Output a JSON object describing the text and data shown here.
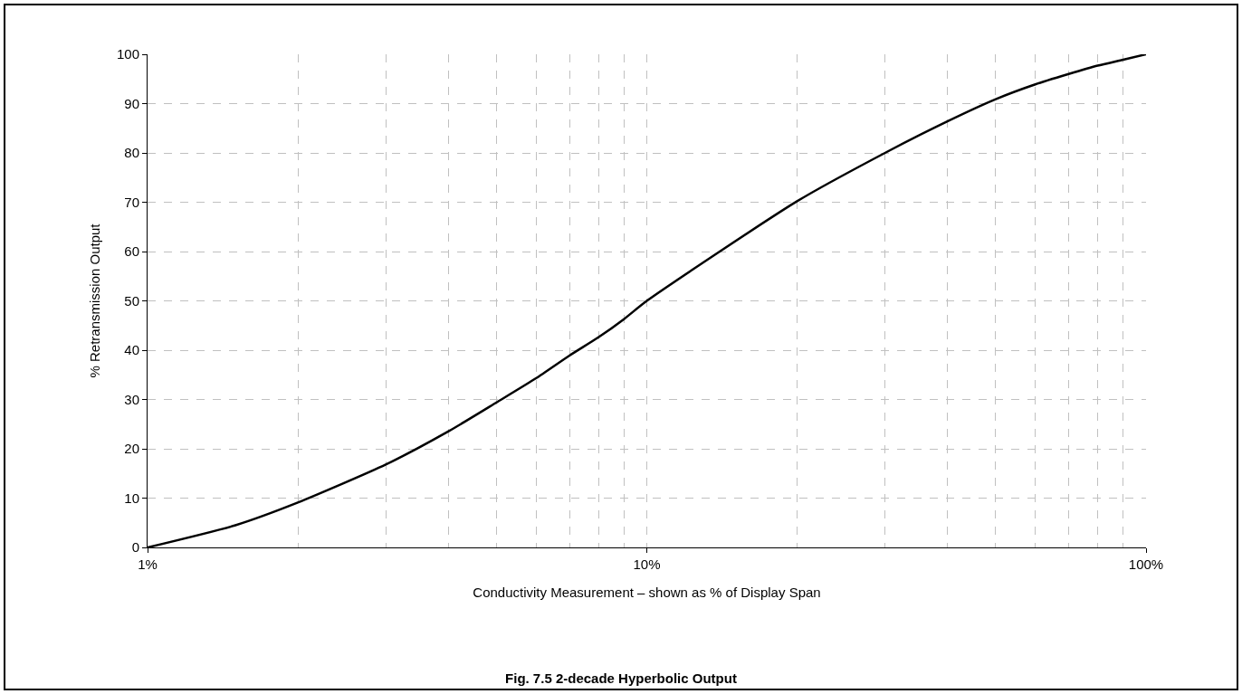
{
  "chart_data": {
    "type": "line",
    "title": "Fig. 7.5 2-decade Hyperbolic Output",
    "xlabel": "Conductivity Measurement – shown as % of Display Span",
    "ylabel": "% Retransmission Output",
    "x": [
      1,
      1.5,
      2,
      3,
      4,
      5,
      6,
      7,
      8,
      9,
      10,
      20,
      30,
      40,
      50,
      60,
      70,
      80,
      90,
      100
    ],
    "series": [
      {
        "color": "#000000",
        "values": [
          0,
          4.5,
          9.1,
          16.8,
          23.5,
          29.4,
          34.3,
          38.9,
          42.6,
          46.3,
          50,
          70.2,
          80,
          86.4,
          90.9,
          93.9,
          96,
          97.7,
          98.9,
          100
        ]
      }
    ],
    "log": "x",
    "xlim": [
      1,
      100
    ],
    "ylim": [
      0,
      100
    ],
    "xticks": [
      {
        "value": 1,
        "label": "1%"
      },
      {
        "value": 2,
        "label": null
      },
      {
        "value": 3,
        "label": null
      },
      {
        "value": 4,
        "label": null
      },
      {
        "value": 5,
        "label": null
      },
      {
        "value": 6,
        "label": null
      },
      {
        "value": 7,
        "label": null
      },
      {
        "value": 8,
        "label": null
      },
      {
        "value": 9,
        "label": null
      },
      {
        "value": 10,
        "label": "10%"
      },
      {
        "value": 20,
        "label": null
      },
      {
        "value": 30,
        "label": null
      },
      {
        "value": 40,
        "label": null
      },
      {
        "value": 50,
        "label": null
      },
      {
        "value": 60,
        "label": null
      },
      {
        "value": 70,
        "label": null
      },
      {
        "value": 80,
        "label": null
      },
      {
        "value": 90,
        "label": null
      },
      {
        "value": 100,
        "label": "100%"
      }
    ],
    "yticks": [
      0,
      10,
      20,
      30,
      40,
      50,
      60,
      70,
      80,
      90,
      100
    ],
    "grid": true,
    "line_style": "solid",
    "marker": "none"
  }
}
